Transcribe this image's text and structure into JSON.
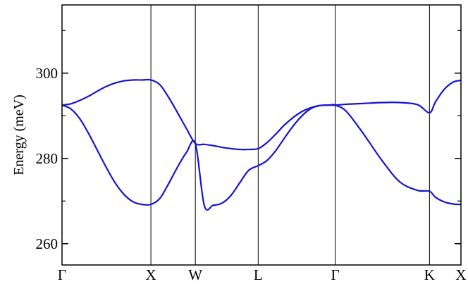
{
  "chart_data": {
    "type": "line",
    "title": "",
    "xlabel": "",
    "ylabel": "Energy (meV)",
    "ylim": [
      255,
      316
    ],
    "yticks": [
      {
        "value": 260,
        "label": "260"
      },
      {
        "value": 280,
        "label": "280"
      },
      {
        "value": 300,
        "label": "300"
      }
    ],
    "yminor": [
      270,
      290,
      310
    ],
    "xticks": [
      {
        "x": 0.0,
        "label": "Γ"
      },
      {
        "x": 1.0,
        "label": "X"
      },
      {
        "x": 1.5,
        "label": "W"
      },
      {
        "x": 2.207,
        "label": "L"
      },
      {
        "x": 3.073,
        "label": "Γ"
      },
      {
        "x": 4.134,
        "label": "K"
      },
      {
        "x": 4.488,
        "label": "X"
      }
    ],
    "xlim": [
      0.0,
      4.488
    ],
    "line_color": "#1414d2",
    "series": [
      {
        "x": [
          0,
          0.1,
          0.2,
          0.3,
          0.4,
          0.5,
          0.6,
          0.7,
          0.8,
          0.9,
          1.0,
          1.1,
          1.2,
          1.3,
          1.4,
          1.5,
          1.6,
          1.7,
          1.8,
          1.9,
          2.0,
          2.1,
          2.207,
          2.3,
          2.4,
          2.5,
          2.6,
          2.7,
          2.8,
          2.9,
          3.0,
          3.073,
          3.2,
          3.4,
          3.6,
          3.8,
          4.0,
          4.134,
          4.2,
          4.3,
          4.4,
          4.488
        ],
        "values": [
          292.5,
          292.8,
          293.6,
          294.6,
          295.8,
          296.9,
          297.7,
          298.2,
          298.4,
          298.4,
          298.4,
          297.3,
          294.3,
          290.7,
          287.0,
          283.5,
          283.3,
          283.0,
          282.6,
          282.3,
          282.1,
          282.1,
          282.3,
          283.6,
          285.6,
          287.8,
          289.6,
          291.0,
          291.9,
          292.4,
          292.5,
          292.5,
          292.7,
          292.9,
          293.1,
          293.1,
          292.6,
          290.7,
          293.2,
          296.2,
          297.9,
          298.3
        ]
      },
      {
        "x": [
          0,
          0.1,
          0.2,
          0.3,
          0.4,
          0.5,
          0.6,
          0.7,
          0.8,
          0.9,
          1.0,
          1.1,
          1.2,
          1.3,
          1.4,
          1.5,
          1.6,
          1.7,
          1.8,
          1.9,
          2.0,
          2.1,
          2.207,
          2.3,
          2.4,
          2.5,
          2.6,
          2.7,
          2.8,
          2.9,
          3.0,
          3.073,
          3.2,
          3.4,
          3.6,
          3.8,
          4.0,
          4.134,
          4.2,
          4.3,
          4.4,
          4.488
        ],
        "values": [
          292.5,
          291.6,
          289.3,
          285.8,
          281.8,
          277.8,
          274.2,
          271.5,
          269.8,
          269.2,
          269.2,
          270.6,
          274.1,
          278.0,
          281.4,
          283.5,
          269.0,
          269.0,
          269.5,
          271.3,
          274.3,
          277.2,
          278.3,
          279.4,
          281.7,
          284.7,
          287.6,
          290.0,
          291.7,
          292.4,
          292.5,
          292.5,
          291.0,
          285.5,
          279.5,
          274.5,
          272.5,
          272.3,
          270.9,
          269.8,
          269.3,
          269.2
        ]
      }
    ]
  }
}
